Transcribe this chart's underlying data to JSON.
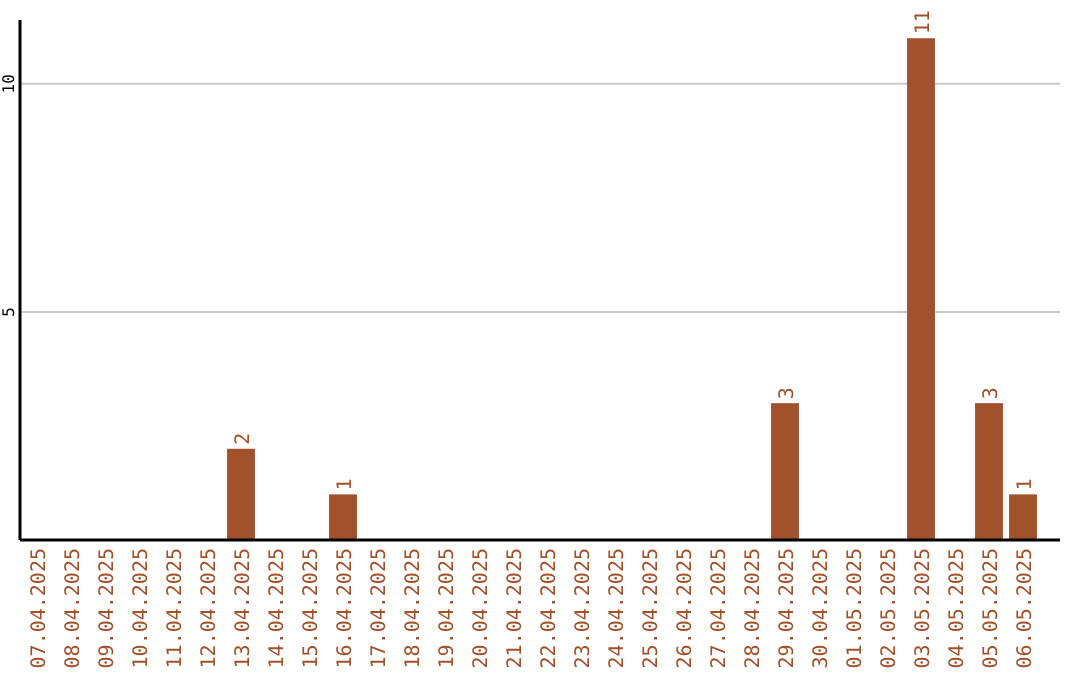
{
  "chart_data": {
    "type": "bar",
    "categories": [
      "07.04.2025",
      "08.04.2025",
      "09.04.2025",
      "10.04.2025",
      "11.04.2025",
      "12.04.2025",
      "13.04.2025",
      "14.04.2025",
      "15.04.2025",
      "16.04.2025",
      "17.04.2025",
      "18.04.2025",
      "19.04.2025",
      "20.04.2025",
      "21.04.2025",
      "22.04.2025",
      "23.04.2025",
      "24.04.2025",
      "25.04.2025",
      "26.04.2025",
      "27.04.2025",
      "28.04.2025",
      "29.04.2025",
      "30.04.2025",
      "01.05.2025",
      "02.05.2025",
      "03.05.2025",
      "04.05.2025",
      "05.05.2025",
      "06.05.2025"
    ],
    "values": [
      0,
      0,
      0,
      0,
      0,
      0,
      2,
      0,
      0,
      1,
      0,
      0,
      0,
      0,
      0,
      0,
      0,
      0,
      0,
      0,
      0,
      0,
      3,
      0,
      0,
      0,
      11,
      0,
      3,
      1
    ],
    "value_labels": [
      null,
      null,
      null,
      null,
      null,
      null,
      "2",
      null,
      null,
      "1",
      null,
      null,
      null,
      null,
      null,
      null,
      null,
      null,
      null,
      null,
      null,
      null,
      "3",
      null,
      null,
      null,
      "11",
      null,
      "3",
      "1"
    ],
    "color": "#a0522d",
    "ylim": [
      0,
      11.4
    ],
    "yticks": [
      5,
      10
    ],
    "grid": "y"
  }
}
